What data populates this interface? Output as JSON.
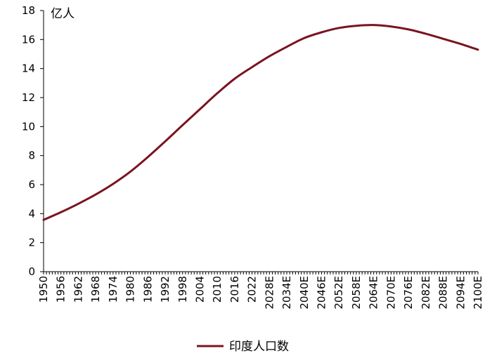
{
  "chart_data": {
    "type": "line",
    "title": "",
    "xlabel": "",
    "ylabel": "亿人",
    "ylim": [
      0,
      18
    ],
    "yticks": [
      0,
      2,
      4,
      6,
      8,
      10,
      12,
      14,
      16,
      18
    ],
    "xtick_labels": [
      "1950",
      "1956",
      "1962",
      "1968",
      "1974",
      "1980",
      "1986",
      "1992",
      "1998",
      "2004",
      "2010",
      "2016",
      "2022",
      "2028E",
      "2034E",
      "2040E",
      "2046E",
      "2052E",
      "2058E",
      "2064E",
      "2070E",
      "2076E",
      "2082E",
      "2088E",
      "2094E",
      "2100E"
    ],
    "grid": false,
    "legend_position": "bottom",
    "line_color": "#7a1420",
    "series": [
      {
        "name": "印度人口数",
        "x": [
          1950,
          1956,
          1962,
          1968,
          1974,
          1980,
          1986,
          1992,
          1998,
          2004,
          2010,
          2016,
          2022,
          2028,
          2034,
          2040,
          2046,
          2052,
          2058,
          2064,
          2070,
          2076,
          2082,
          2088,
          2094,
          2100
        ],
        "values": [
          3.57,
          4.1,
          4.68,
          5.32,
          6.05,
          6.9,
          7.9,
          8.98,
          10.1,
          11.2,
          12.3,
          13.3,
          14.1,
          14.85,
          15.5,
          16.1,
          16.5,
          16.8,
          16.95,
          17.0,
          16.9,
          16.7,
          16.4,
          16.05,
          15.7,
          15.3
        ]
      }
    ]
  }
}
